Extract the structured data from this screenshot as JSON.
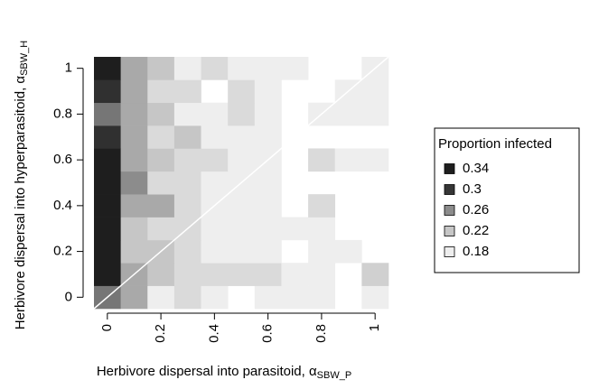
{
  "chart_data": {
    "type": "heatmap",
    "x_label": "Herbivore dispersal into parasitoid, α",
    "x_label_subscript": "SBW_P",
    "y_label": "Herbivore dispersal into hyperparasitoid, α",
    "y_label_subscript": "SBW_H",
    "x": [
      0,
      0.1,
      0.2,
      0.3,
      0.4,
      0.5,
      0.6,
      0.7,
      0.8,
      0.9,
      1
    ],
    "y": [
      0,
      0.1,
      0.2,
      0.3,
      0.4,
      0.5,
      0.6,
      0.7,
      0.8,
      0.9,
      1
    ],
    "values": [
      [
        0.27,
        0.24,
        0.18,
        0.2,
        0.18,
        null,
        0.18,
        0.18,
        0.18,
        null,
        0.18
      ],
      [
        0.34,
        0.24,
        0.22,
        0.2,
        0.2,
        0.2,
        0.2,
        0.18,
        0.18,
        null,
        0.21
      ],
      [
        0.34,
        0.22,
        0.22,
        0.2,
        0.18,
        0.18,
        0.18,
        null,
        0.18,
        0.18,
        null
      ],
      [
        0.34,
        0.22,
        0.2,
        0.2,
        0.18,
        0.18,
        0.18,
        0.18,
        0.18,
        null,
        null
      ],
      [
        0.34,
        0.24,
        0.24,
        0.2,
        0.18,
        0.18,
        0.18,
        null,
        0.2,
        null,
        null
      ],
      [
        0.34,
        0.26,
        0.2,
        0.2,
        0.18,
        0.18,
        0.18,
        null,
        null,
        null,
        null
      ],
      [
        0.34,
        0.24,
        0.22,
        0.2,
        0.2,
        0.18,
        0.18,
        null,
        0.2,
        0.18,
        0.18
      ],
      [
        0.31,
        0.24,
        0.2,
        0.22,
        0.18,
        0.18,
        0.18,
        null,
        null,
        null,
        null
      ],
      [
        0.27,
        0.24,
        0.22,
        0.18,
        0.18,
        0.2,
        0.18,
        null,
        0.18,
        0.18,
        0.18
      ],
      [
        0.31,
        0.24,
        0.2,
        0.2,
        null,
        0.2,
        0.18,
        null,
        null,
        0.18,
        0.18
      ],
      [
        0.34,
        0.24,
        0.22,
        0.18,
        0.2,
        0.18,
        0.18,
        0.18,
        null,
        null,
        0.18
      ]
    ],
    "xlim": [
      -0.05,
      1.05
    ],
    "ylim": [
      -0.05,
      1.05
    ],
    "xticks": [
      0,
      0.2,
      0.4,
      0.6,
      0.8,
      1
    ],
    "yticks": [
      0,
      0.2,
      0.4,
      0.6,
      0.8,
      1
    ],
    "diagonal_line": true,
    "diagonal_color": "#ffffff",
    "legend_title": "Proportion infected",
    "legend_values": [
      0.34,
      0.3,
      0.26,
      0.22,
      0.18
    ],
    "legend_colors": [
      "#1e1e1e",
      "#363636",
      "#8c8c8c",
      "#c6c6c6",
      "#eeeeee"
    ]
  }
}
